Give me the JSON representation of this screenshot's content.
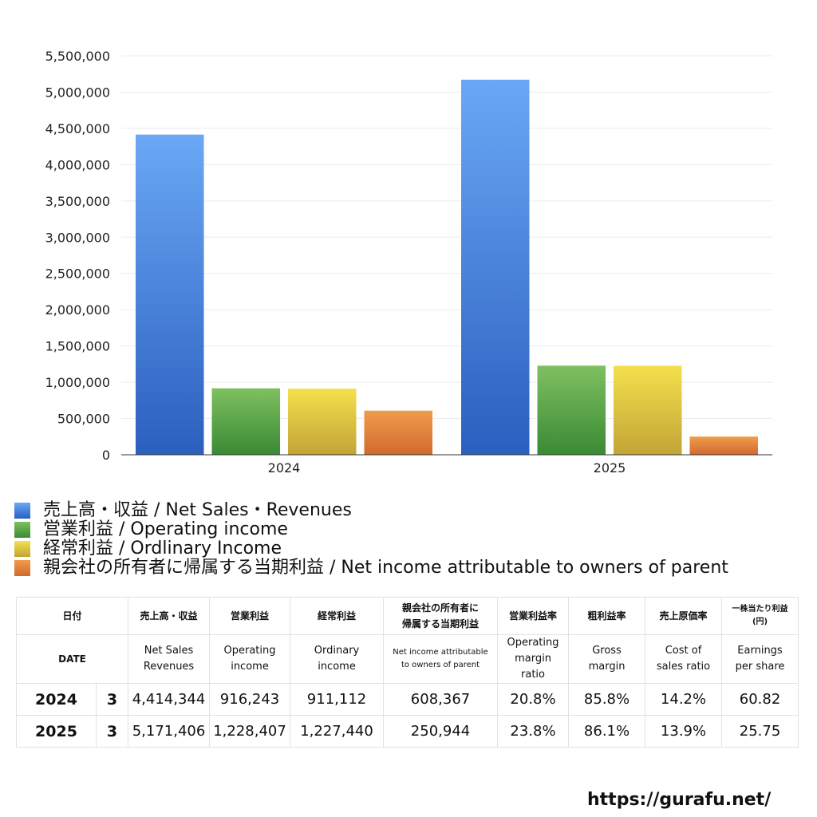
{
  "chart_data": {
    "type": "bar",
    "categories": [
      "2024",
      "2025"
    ],
    "series": [
      {
        "name": "売上高・収益 / Net Sales・Revenues",
        "values": [
          4414344,
          5171406
        ],
        "color_top": "#6aa8f5",
        "color_bottom": "#2b5fbf"
      },
      {
        "name": "営業利益 / Operating income",
        "values": [
          916243,
          1228407
        ],
        "color_top": "#7ec060",
        "color_bottom": "#3a8a34"
      },
      {
        "name": "経常利益 / Ordlinary Income",
        "values": [
          911112,
          1227440
        ],
        "color_top": "#f4e04d",
        "color_bottom": "#c2a436"
      },
      {
        "name": "親会社の所有者に帰属する当期利益 / Net income attributable to owners of parent",
        "values": [
          608367,
          250944
        ],
        "color_top": "#f09c4c",
        "color_bottom": "#d2692e"
      }
    ],
    "ylim": [
      0,
      5500000
    ],
    "yticks": [
      0,
      500000,
      1000000,
      1500000,
      2000000,
      2500000,
      3000000,
      3500000,
      4000000,
      4500000,
      5000000,
      5500000
    ],
    "ytick_labels": [
      "0",
      "500,000",
      "1,000,000",
      "1,500,000",
      "2,000,000",
      "2,500,000",
      "3,000,000",
      "3,500,000",
      "4,000,000",
      "4,500,000",
      "5,000,000",
      "5,500,000"
    ],
    "title": "",
    "xlabel": "",
    "ylabel": "",
    "grid": true,
    "legend_position": "bottom"
  },
  "table": {
    "header_jp": {
      "date": "日付",
      "sales": "売上高・収益",
      "op": "営業利益",
      "ord": "経常利益",
      "net_line1": "親会社の所有者に",
      "net_line2": "帰属する当期利益",
      "opm": "営業利益率",
      "gm": "粗利益率",
      "cost": "売上原価率",
      "eps_line1": "一株当たり利益",
      "eps_line2": "(円)"
    },
    "header_en": {
      "date": "DATE",
      "sales_line1": "Net Sales",
      "sales_line2": "Revenues",
      "op_line1": "Operating",
      "op_line2": "income",
      "ord_line1": "Ordinary",
      "ord_line2": "income",
      "net_line1": "Net income attributable",
      "net_line2": "to owners of parent",
      "opm_line1": "Operating",
      "opm_line2": "margin",
      "opm_line3": "ratio",
      "gm_line1": "Gross",
      "gm_line2": "margin",
      "cost_line1": "Cost of",
      "cost_line2": "sales ratio",
      "eps_line1": "Earnings",
      "eps_line2": "per share"
    },
    "rows": [
      {
        "year": "2024",
        "month": "3",
        "sales": "4,414,344",
        "op": "916,243",
        "ord": "911,112",
        "net": "608,367",
        "opm": "20.8%",
        "gm": "85.8%",
        "cost": "14.2%",
        "eps": "60.82"
      },
      {
        "year": "2025",
        "month": "3",
        "sales": "5,171,406",
        "op": "1,228,407",
        "ord": "1,227,440",
        "net": "250,944",
        "opm": "23.8%",
        "gm": "86.1%",
        "cost": "13.9%",
        "eps": "25.75"
      }
    ]
  },
  "site_url": "https://gurafu.net/"
}
